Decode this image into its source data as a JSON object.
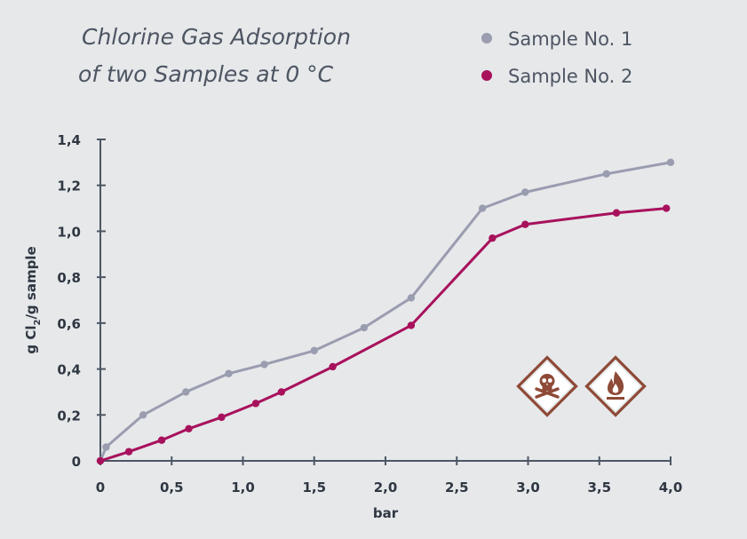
{
  "chart_data": {
    "type": "line",
    "title": "Chlorine Gas Adsorption",
    "subtitle": "of two Samples at 0 °C",
    "xlabel": "bar",
    "ylabel_parts": [
      "g Cl",
      "2",
      "/g sample"
    ],
    "xlim": [
      0,
      4.0
    ],
    "ylim": [
      0,
      1.4
    ],
    "x_ticks": [
      "0",
      "0,5",
      "1,0",
      "1,5",
      "2,0",
      "2,5",
      "3,0",
      "3,5",
      "4,0"
    ],
    "y_ticks": [
      "0",
      "0,2",
      "0,4",
      "0,6",
      "0,8",
      "1,0",
      "1,2",
      "1,4"
    ],
    "x_tick_values": [
      0,
      0.5,
      1.0,
      1.5,
      2.0,
      2.5,
      3.0,
      3.5,
      4.0
    ],
    "y_tick_values": [
      0,
      0.2,
      0.4,
      0.6,
      0.8,
      1.0,
      1.2,
      1.4
    ],
    "grid": false,
    "legend_position": "top-right",
    "series": [
      {
        "name": "Sample No. 1",
        "color": "#9a9cb0",
        "x": [
          0,
          0.04,
          0.3,
          0.6,
          0.9,
          1.15,
          1.5,
          1.85,
          2.18,
          2.68,
          2.98,
          3.55,
          4.0
        ],
        "y": [
          0,
          0.06,
          0.2,
          0.3,
          0.38,
          0.42,
          0.48,
          0.58,
          0.71,
          1.1,
          1.17,
          1.25,
          1.3
        ]
      },
      {
        "name": "Sample No. 2",
        "color": "#a8115c",
        "x": [
          0,
          0.2,
          0.43,
          0.62,
          0.85,
          1.09,
          1.27,
          1.63,
          2.18,
          2.75,
          2.98,
          3.62,
          3.97
        ],
        "y": [
          0,
          0.04,
          0.09,
          0.14,
          0.19,
          0.25,
          0.3,
          0.41,
          0.59,
          0.97,
          1.03,
          1.08,
          1.1
        ]
      }
    ]
  },
  "icons": {
    "icons_color": "#8e4a37",
    "items": [
      "skull-crossbones-icon",
      "flame-icon"
    ]
  }
}
